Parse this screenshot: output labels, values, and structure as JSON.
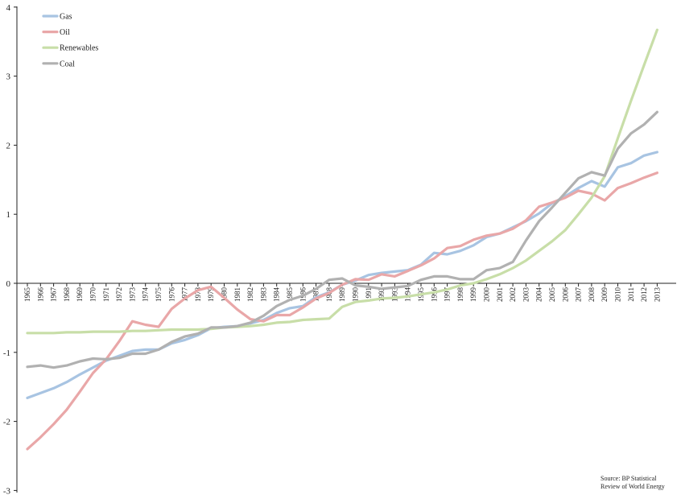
{
  "chart_data": {
    "type": "line",
    "title": "",
    "xlabel": "",
    "ylabel": "",
    "ylim": [
      -3,
      4
    ],
    "yticks": [
      -3,
      -2,
      -1,
      0,
      1,
      2,
      3,
      4
    ],
    "grid": false,
    "legend_position": "top-left",
    "x": [
      "1965",
      "1966",
      "1967",
      "1968",
      "1969",
      "1970",
      "1971",
      "1972",
      "1973",
      "1974",
      "1975",
      "1976",
      "1977",
      "1978",
      "1979",
      "1980",
      "1981",
      "1982",
      "1983",
      "1984",
      "1985",
      "1986",
      "1987",
      "1988",
      "1989",
      "1990",
      "1991",
      "1992",
      "1993",
      "1994",
      "1995",
      "1996",
      "1997",
      "1998",
      "1999",
      "2000",
      "2001",
      "2002",
      "2003",
      "2004",
      "2005",
      "2006",
      "2007",
      "2008",
      "2009",
      "2010",
      "2011",
      "2012",
      "2013"
    ],
    "series": [
      {
        "name": "Gas",
        "color": "#a8c4e2",
        "values": [
          -1.66,
          -1.59,
          -1.52,
          -1.43,
          -1.32,
          -1.22,
          -1.12,
          -1.05,
          -0.98,
          -0.96,
          -0.96,
          -0.87,
          -0.82,
          -0.75,
          -0.65,
          -0.63,
          -0.62,
          -0.58,
          -0.53,
          -0.43,
          -0.36,
          -0.33,
          -0.2,
          -0.13,
          -0.02,
          0.04,
          0.12,
          0.15,
          0.17,
          0.19,
          0.27,
          0.44,
          0.42,
          0.47,
          0.55,
          0.67,
          0.72,
          0.81,
          0.9,
          1.01,
          1.16,
          1.26,
          1.38,
          1.48,
          1.4,
          1.68,
          1.74,
          1.85,
          1.9
        ]
      },
      {
        "name": "Oil",
        "color": "#e9a7a8",
        "values": [
          -2.4,
          -2.23,
          -2.04,
          -1.83,
          -1.57,
          -1.3,
          -1.1,
          -0.84,
          -0.55,
          -0.6,
          -0.63,
          -0.37,
          -0.22,
          -0.1,
          -0.05,
          -0.21,
          -0.38,
          -0.52,
          -0.55,
          -0.46,
          -0.46,
          -0.35,
          -0.22,
          -0.14,
          -0.02,
          0.06,
          0.05,
          0.13,
          0.1,
          0.18,
          0.26,
          0.36,
          0.51,
          0.54,
          0.63,
          0.69,
          0.72,
          0.79,
          0.91,
          1.11,
          1.17,
          1.24,
          1.34,
          1.3,
          1.2,
          1.38,
          1.45,
          1.53,
          1.6
        ]
      },
      {
        "name": "Renewables",
        "color": "#c8dea8",
        "values": [
          -0.72,
          -0.72,
          -0.72,
          -0.71,
          -0.71,
          -0.7,
          -0.7,
          -0.7,
          -0.69,
          -0.69,
          -0.68,
          -0.67,
          -0.67,
          -0.67,
          -0.66,
          -0.64,
          -0.63,
          -0.62,
          -0.6,
          -0.57,
          -0.56,
          -0.53,
          -0.52,
          -0.51,
          -0.34,
          -0.27,
          -0.25,
          -0.22,
          -0.21,
          -0.19,
          -0.16,
          -0.13,
          -0.09,
          -0.03,
          0.0,
          0.06,
          0.13,
          0.22,
          0.33,
          0.47,
          0.61,
          0.77,
          1.0,
          1.24,
          1.55,
          2.1,
          2.64,
          3.16,
          3.67
        ]
      },
      {
        "name": "Coal",
        "color": "#b1b1b1",
        "values": [
          -1.21,
          -1.19,
          -1.22,
          -1.19,
          -1.13,
          -1.09,
          -1.1,
          -1.08,
          -1.02,
          -1.02,
          -0.96,
          -0.85,
          -0.77,
          -0.73,
          -0.64,
          -0.64,
          -0.62,
          -0.57,
          -0.47,
          -0.33,
          -0.24,
          -0.18,
          -0.08,
          0.05,
          0.07,
          -0.03,
          -0.05,
          -0.08,
          -0.06,
          -0.04,
          0.05,
          0.1,
          0.1,
          0.06,
          0.06,
          0.19,
          0.22,
          0.31,
          0.62,
          0.9,
          1.1,
          1.31,
          1.52,
          1.61,
          1.56,
          1.95,
          2.17,
          2.3,
          2.48
        ]
      }
    ]
  },
  "source_note": {
    "line1": "Source: BP Statistical",
    "line2": "Review of World Energy"
  }
}
